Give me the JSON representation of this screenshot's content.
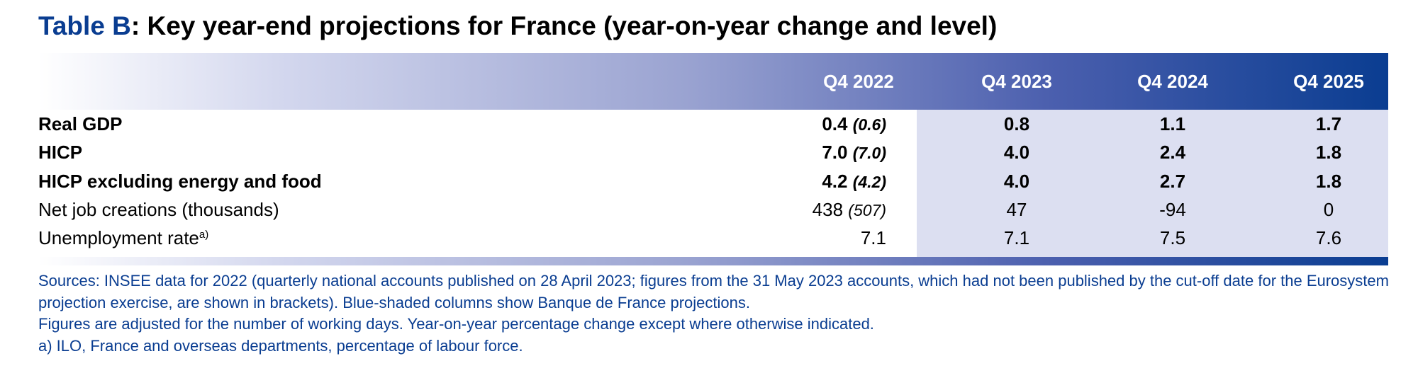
{
  "title": {
    "tag": "Table B",
    "text": ": Key year-end projections for France (year-on-year change and level)"
  },
  "table": {
    "columns": [
      "Q4 2022",
      "Q4 2023",
      "Q4 2024",
      "Q4 2025"
    ],
    "rows": [
      {
        "label": "Real GDP",
        "sup": "",
        "bold": true,
        "q2022": "0.4",
        "q2022_paren": "(0.6)",
        "q2023": "0.8",
        "q2024": "1.1",
        "q2025": "1.7"
      },
      {
        "label": "HICP",
        "sup": "",
        "bold": true,
        "q2022": "7.0",
        "q2022_paren": "(7.0)",
        "q2023": "4.0",
        "q2024": "2.4",
        "q2025": "1.8"
      },
      {
        "label": "HICP excluding energy and food",
        "sup": "",
        "bold": true,
        "q2022": "4.2",
        "q2022_paren": "(4.2)",
        "q2023": "4.0",
        "q2024": "2.7",
        "q2025": "1.8"
      },
      {
        "label": "Net job creations (thousands)",
        "sup": "",
        "bold": false,
        "q2022": "438",
        "q2022_paren": "(507)",
        "q2023": "47",
        "q2024": "-94",
        "q2025": "0"
      },
      {
        "label": "Unemployment rate",
        "sup": "a)",
        "bold": false,
        "q2022": "7.1",
        "q2022_paren": "",
        "q2023": "7.1",
        "q2024": "7.5",
        "q2025": "7.6"
      }
    ]
  },
  "notes": {
    "sources": "Sources: INSEE data for 2022 (quarterly national accounts published on 28 April 2023; figures from the 31 May 2023 accounts, which had not been published by the cut-off date for the Eurosystem projection exercise, are shown in brackets). Blue-shaded columns show Banque de France projections.",
    "adjusted": "Figures are adjusted for the number of working days. Year-on-year percentage change except where otherwise indicated.",
    "footnote_a": "a)  ILO, France and overseas departments, percentage of labour force."
  },
  "colors": {
    "brand_blue": "#0a3d91",
    "projection_shade": "#dcdff1"
  }
}
